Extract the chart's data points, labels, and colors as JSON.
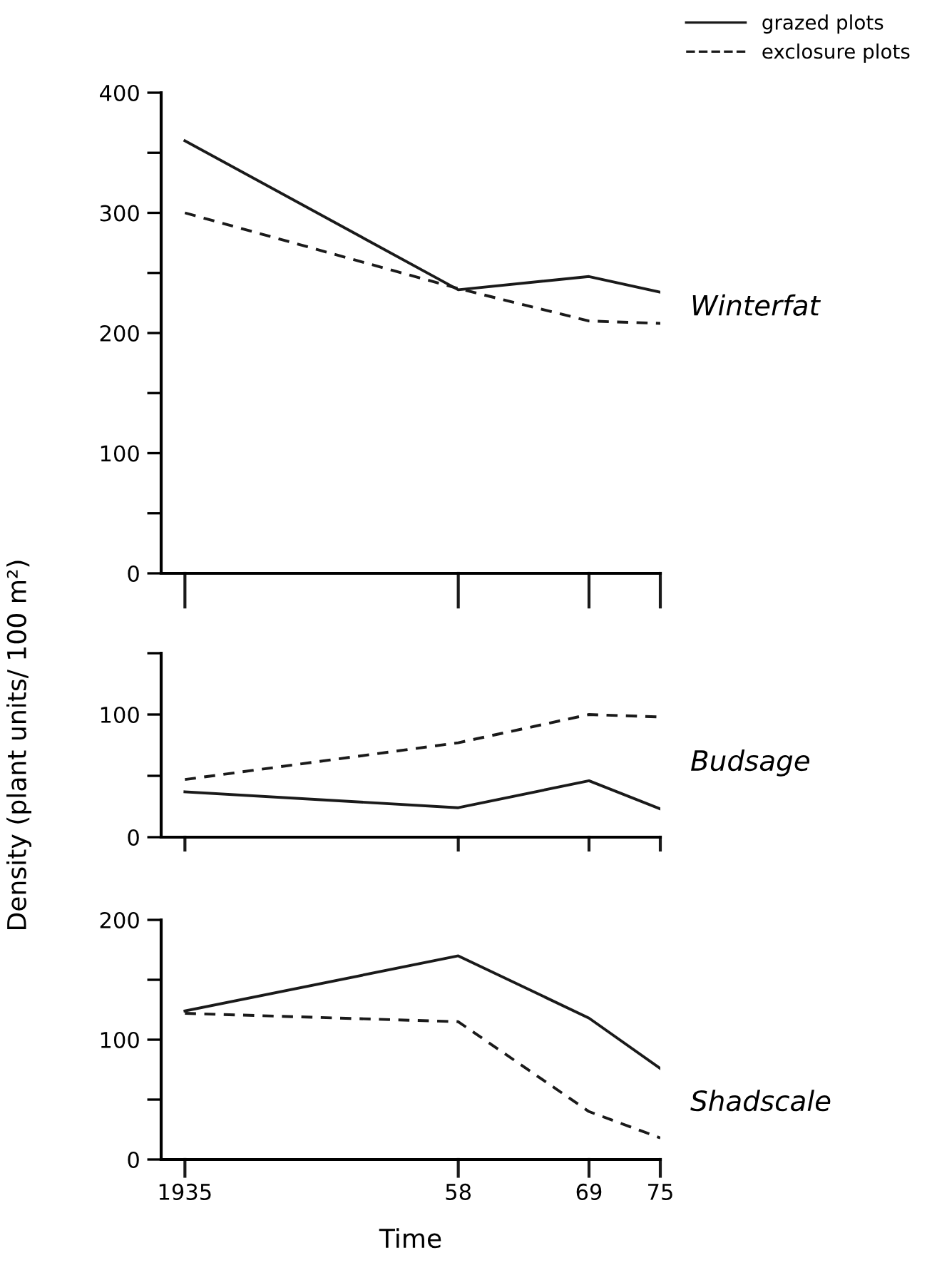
{
  "chart_data": [
    {
      "type": "line",
      "x": [
        1935,
        1958,
        1969,
        1975
      ],
      "xlim": [
        1933,
        1975
      ],
      "xticks": [
        {
          "value": 1935,
          "label": null
        },
        {
          "value": 1958,
          "label": null
        },
        {
          "value": 1969,
          "label": null
        },
        {
          "value": 1975,
          "label": null
        }
      ],
      "ylim": [
        0,
        400
      ],
      "yticks": [
        0,
        {
          "value": 50,
          "label": null
        },
        100,
        {
          "value": 150,
          "label": null
        },
        200,
        {
          "value": 250,
          "label": null
        },
        300,
        {
          "value": 350,
          "label": null
        },
        400
      ],
      "tick_labels": "y",
      "legend": "top right",
      "grid": false,
      "annotations": [
        "Winterfat"
      ],
      "series": [
        {
          "name": "grazed plots",
          "color": "#1a1a1a",
          "line_style": "solid",
          "values": [
            360,
            236,
            247,
            234
          ]
        },
        {
          "name": "exclosure plots",
          "color": "#1a1a1a",
          "line_style": "dashed",
          "values": [
            300,
            237,
            210,
            208
          ]
        }
      ]
    },
    {
      "type": "line",
      "x": [
        1935,
        1958,
        1969,
        1975
      ],
      "xlim": [
        1933,
        1975
      ],
      "xticks": [
        {
          "value": 1935,
          "label": null
        },
        {
          "value": 1958,
          "label": null
        },
        {
          "value": 1969,
          "label": null
        },
        {
          "value": 1975,
          "label": null
        }
      ],
      "ylim": [
        0,
        150
      ],
      "yticks": [
        0,
        {
          "value": 50,
          "label": null
        },
        100,
        {
          "value": 150,
          "label": null
        }
      ],
      "tick_labels": "y",
      "grid": false,
      "ylabel": "Density (plant units/ 100 m²)",
      "annotations": [
        "Budsage"
      ],
      "series": [
        {
          "color": "#1a1a1a",
          "line_style": "solid",
          "values": [
            37,
            24,
            46,
            23
          ]
        },
        {
          "color": "#1a1a1a",
          "line_style": "dashed",
          "values": [
            47,
            77,
            100,
            98
          ]
        }
      ]
    },
    {
      "type": "line",
      "x": [
        1935,
        1958,
        1969,
        1975
      ],
      "xlim": [
        1933,
        1975
      ],
      "xticks": [
        {
          "value": 1935,
          "label": "1935"
        },
        {
          "value": 1958,
          "label": "58"
        },
        {
          "value": 1969,
          "label": "69"
        },
        {
          "value": 1975,
          "label": "75"
        }
      ],
      "ylim": [
        0,
        200
      ],
      "yticks": [
        0,
        {
          "value": 50,
          "label": null
        },
        100,
        {
          "value": 150,
          "label": null
        },
        200
      ],
      "grid": false,
      "xlabel": "Time",
      "annotations": [
        "Shadscale"
      ],
      "series": [
        {
          "color": "#1a1a1a",
          "line_style": "solid",
          "values": [
            124,
            170,
            118,
            76
          ]
        },
        {
          "color": "#1a1a1a",
          "line_style": "dashed",
          "values": [
            122,
            115,
            40,
            18
          ]
        }
      ]
    }
  ]
}
